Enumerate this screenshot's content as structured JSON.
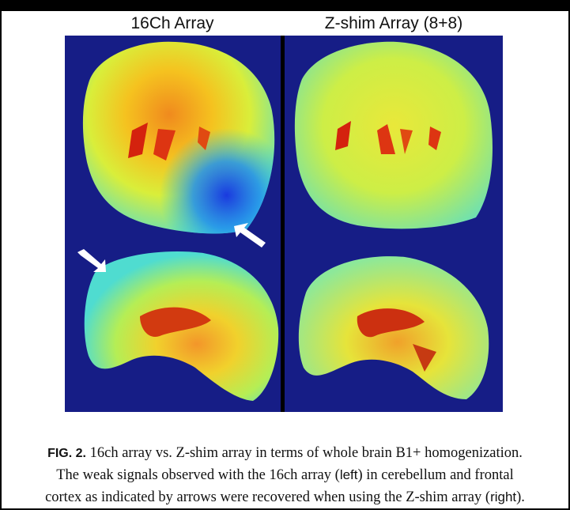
{
  "figure": {
    "left_title": "16Ch Array",
    "right_title": "Z-shim Array (8+8)"
  },
  "caption": {
    "label": "FIG. 2.",
    "line1_text": " 16ch array vs. Z-shim array in terms of whole brain B1+ homogenization.",
    "line2_text": "The weak signals observed with the 16ch array (",
    "line2_left": "left",
    "line2_end": ") in cerebellum and frontal",
    "line3_text": "cortex as indicated by arrows were recovered when using the Z-shim array (",
    "line3_right": "right",
    "line3_end": ")."
  },
  "colors": {
    "background_map": "#161d86",
    "divider": "#000000"
  }
}
